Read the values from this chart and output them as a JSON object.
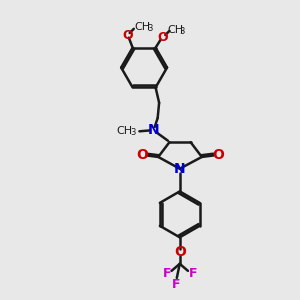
{
  "background_color": "#e8e8e8",
  "bond_color": "#1a1a1a",
  "nitrogen_color": "#0000cc",
  "oxygen_color": "#cc0000",
  "fluorine_color": "#cc00cc",
  "line_width": 1.8,
  "fig_size": [
    3.0,
    3.0
  ],
  "dpi": 100,
  "xlim": [
    0,
    10
  ],
  "ylim": [
    0,
    10
  ]
}
